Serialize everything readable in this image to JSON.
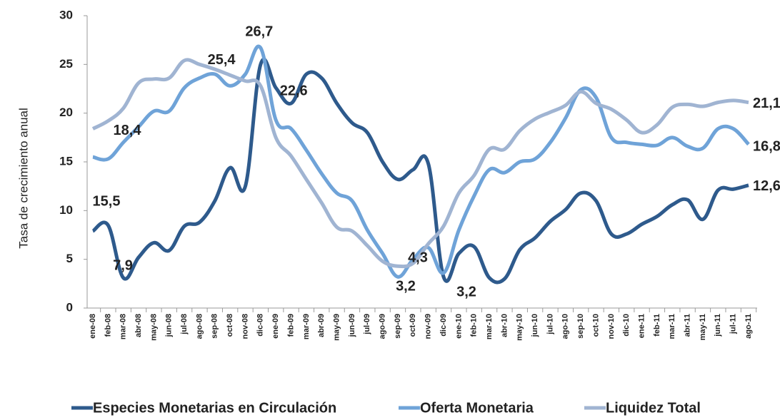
{
  "chart_data": {
    "type": "line",
    "y_label": "Tasa de crecimiento anual",
    "categories": [
      "ene-08",
      "feb-08",
      "mar-08",
      "abr-08",
      "may-08",
      "jun-08",
      "jul-08",
      "ago-08",
      "sep-08",
      "oct-08",
      "nov-08",
      "dic-08",
      "ene-09",
      "feb-09",
      "mar-09",
      "abr-09",
      "may-09",
      "jun-09",
      "jul-09",
      "ago-09",
      "sep-09",
      "oct-09",
      "nov-09",
      "dic-09",
      "ene-10",
      "feb-10",
      "mar-10",
      "abr-10",
      "may-10",
      "jun-10",
      "jul-10",
      "ago-10",
      "sep-10",
      "oct-10",
      "nov-10",
      "dic-10",
      "ene-11",
      "feb-11",
      "mar-11",
      "abr-11",
      "may-11",
      "jun-11",
      "jul-11",
      "ago-11"
    ],
    "series": [
      {
        "name": "Especies Monetarias en Circulación",
        "color": "#2e5a8c",
        "values": [
          7.9,
          8.5,
          3.1,
          5.2,
          6.7,
          5.9,
          8.4,
          8.8,
          11.0,
          14.4,
          12.5,
          25.0,
          22.6,
          21.0,
          24.0,
          23.6,
          21.0,
          19.0,
          18.0,
          15.0,
          13.2,
          14.2,
          14.8,
          3.2,
          5.6,
          6.3,
          3.1,
          3.0,
          6.0,
          7.2,
          8.9,
          10.1,
          11.8,
          11.0,
          7.6,
          7.6,
          8.6,
          9.4,
          10.6,
          11.1,
          9.1,
          12.1,
          12.2,
          12.6
        ],
        "value_labels": [
          "7,9",
          null,
          null,
          null,
          null,
          null,
          null,
          null,
          null,
          null,
          null,
          null,
          "22,6",
          null,
          null,
          null,
          null,
          null,
          null,
          null,
          null,
          null,
          null,
          "3,2",
          null,
          null,
          null,
          null,
          null,
          null,
          null,
          null,
          null,
          null,
          null,
          null,
          null,
          null,
          null,
          null,
          null,
          null,
          null,
          "12,6"
        ]
      },
      {
        "name": "Oferta Monetaria",
        "color": "#6fa3d8",
        "values": [
          15.5,
          15.3,
          17.0,
          18.6,
          20.2,
          20.2,
          22.6,
          23.6,
          24.0,
          22.8,
          24.0,
          26.7,
          19.3,
          18.4,
          16.2,
          13.8,
          11.8,
          11.0,
          8.0,
          5.6,
          3.2,
          5.0,
          6.2,
          3.6,
          8.0,
          11.5,
          14.2,
          13.9,
          15.0,
          15.3,
          17.0,
          19.5,
          22.4,
          21.6,
          17.5,
          17.0,
          16.8,
          16.7,
          17.5,
          16.6,
          16.4,
          18.4,
          18.4,
          16.8
        ],
        "value_labels": [
          "15,5",
          null,
          null,
          null,
          null,
          null,
          null,
          null,
          null,
          null,
          null,
          "26,7",
          null,
          null,
          null,
          null,
          null,
          null,
          null,
          null,
          "3,2",
          null,
          null,
          null,
          null,
          null,
          null,
          null,
          null,
          null,
          null,
          null,
          null,
          null,
          null,
          null,
          null,
          null,
          null,
          null,
          null,
          null,
          null,
          "16,8"
        ]
      },
      {
        "name": "Liquidez Total",
        "color": "#a0b4d2",
        "values": [
          18.4,
          19.2,
          20.5,
          23.1,
          23.5,
          23.6,
          25.4,
          25.0,
          24.5,
          23.9,
          23.3,
          22.8,
          17.5,
          15.6,
          13.2,
          10.8,
          8.3,
          7.9,
          6.4,
          4.8,
          4.3,
          4.6,
          6.6,
          8.4,
          11.8,
          13.6,
          16.3,
          16.3,
          18.2,
          19.4,
          20.1,
          20.8,
          22.2,
          21.0,
          20.4,
          19.3,
          18.0,
          18.8,
          20.6,
          20.9,
          20.7,
          21.1,
          21.3,
          21.1
        ],
        "value_labels": [
          "18,4",
          null,
          null,
          null,
          null,
          null,
          "25,4",
          null,
          null,
          null,
          null,
          null,
          null,
          null,
          null,
          null,
          null,
          null,
          null,
          null,
          "4,3",
          null,
          null,
          null,
          null,
          null,
          null,
          null,
          null,
          null,
          null,
          null,
          null,
          null,
          null,
          null,
          null,
          null,
          null,
          null,
          null,
          null,
          null,
          "21,1"
        ]
      }
    ],
    "ylim": [
      0,
      30
    ],
    "yticks": [
      0,
      5,
      10,
      15,
      20,
      25,
      30
    ],
    "grid": false,
    "legend": "bottom"
  }
}
